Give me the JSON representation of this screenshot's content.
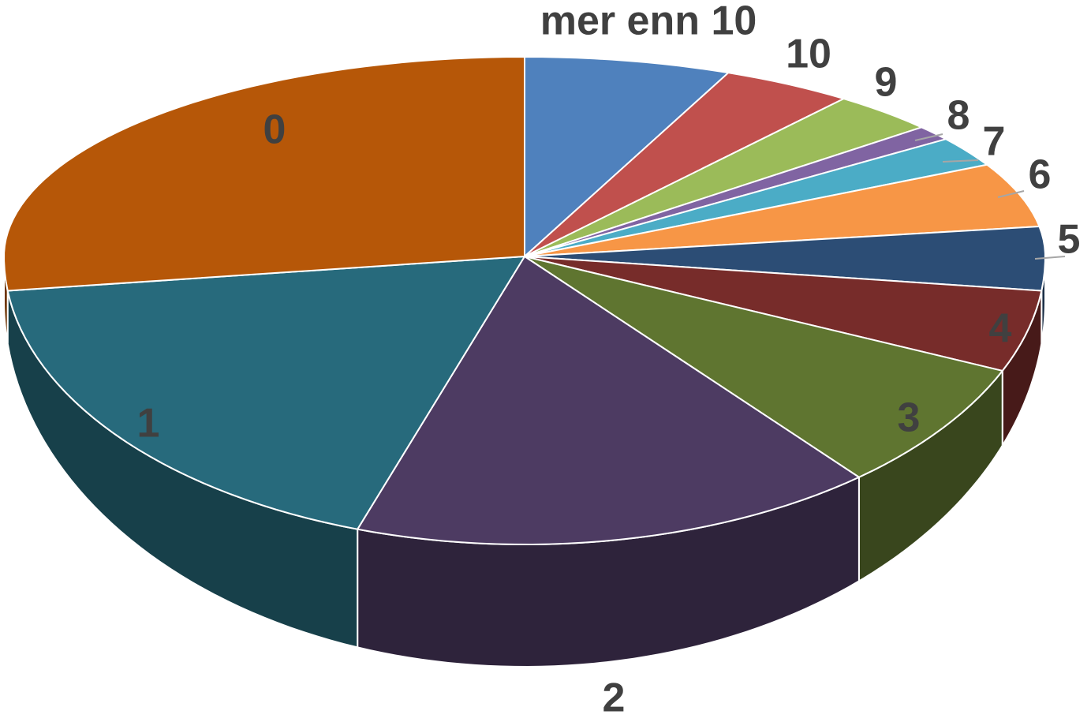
{
  "chart_data": {
    "type": "pie",
    "categories": [
      "mer enn 10",
      "10",
      "9",
      "8",
      "7",
      "6",
      "5",
      "4",
      "3",
      "2",
      "1",
      "0"
    ],
    "values": [
      6.4,
      4.1,
      3.3,
      1.2,
      2.4,
      5.2,
      4.3,
      4.6,
      7.4,
      16.3,
      17.9,
      26.9
    ],
    "colors": [
      "#4f81bd",
      "#c0504d",
      "#9bbb59",
      "#8064a2",
      "#4bacc6",
      "#f79646",
      "#2c4d75",
      "#772c2a",
      "#5f7530",
      "#4d3b62",
      "#276a7c",
      "#b65708"
    ]
  }
}
